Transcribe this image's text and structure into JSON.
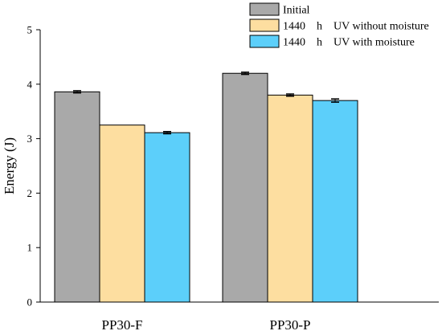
{
  "chart_data": {
    "type": "bar",
    "categories": [
      "PP30-F",
      "PP30-P"
    ],
    "series": [
      {
        "name": "Initial",
        "values": [
          3.86,
          4.2
        ],
        "errors": [
          0.02,
          0.02
        ],
        "color": "#a9a9a9"
      },
      {
        "name": "1440　h　UV without moisture",
        "values": [
          3.25,
          3.8
        ],
        "errors": [
          0.0,
          0.02
        ],
        "color": "#fddea0"
      },
      {
        "name": "1440　h　UV with moisture",
        "values": [
          3.11,
          3.7
        ],
        "errors": [
          0.02,
          0.03
        ],
        "color": "#5ccffa"
      }
    ],
    "xlabel": "",
    "ylabel": "Energy (J)",
    "ylim": [
      0,
      5
    ],
    "yticks": [
      "0",
      "1",
      "2",
      "3",
      "4",
      "5"
    ],
    "grid": false,
    "legend_position": "top-right"
  }
}
